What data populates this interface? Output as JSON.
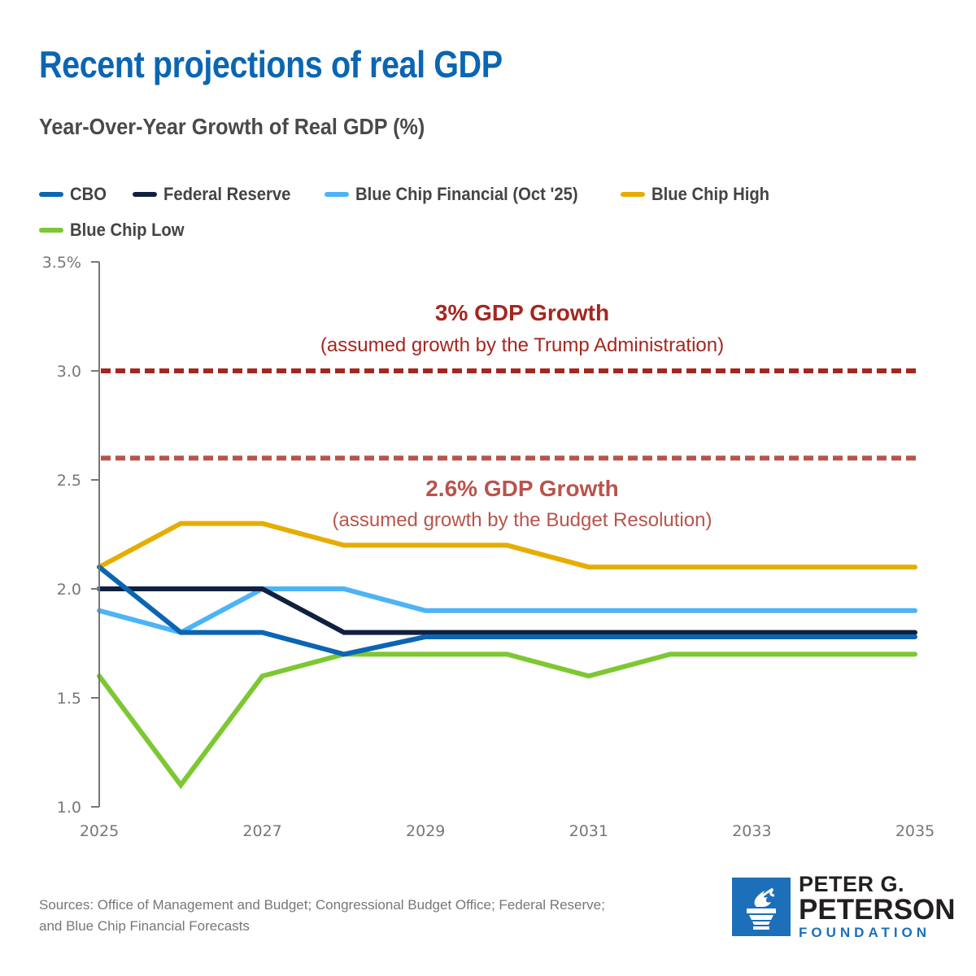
{
  "header": {
    "title": "Recent projections of real GDP",
    "subtitle": "Year-Over-Year Growth of Real GDP (%)"
  },
  "chart_data": {
    "type": "line",
    "title": "Recent projections of real GDP",
    "subtitle": "Year-Over-Year Growth of Real GDP (%)",
    "xlabel": "",
    "ylabel": "",
    "x": [
      2025,
      2026,
      2027,
      2028,
      2029,
      2030,
      2031,
      2032,
      2033,
      2034,
      2035
    ],
    "x_tick_labels": [
      "2025",
      "2027",
      "2029",
      "2031",
      "2033",
      "2035"
    ],
    "x_ticks": [
      2025,
      2027,
      2029,
      2031,
      2033,
      2035
    ],
    "y_tick_labels": [
      "3.5%",
      "3.0",
      "2.5",
      "2.0",
      "1.5",
      "1.0"
    ],
    "y_ticks": [
      3.5,
      3.0,
      2.5,
      2.0,
      1.5,
      1.0
    ],
    "ylim": [
      1.0,
      3.5
    ],
    "xlim": [
      2025,
      2035
    ],
    "grid": false,
    "legend_position": "top",
    "series": [
      {
        "name": "CBO",
        "color": "#0a66b2",
        "values": [
          2.1,
          1.8,
          1.8,
          1.7,
          1.78,
          1.78,
          1.78,
          1.78,
          1.78,
          1.78,
          1.78
        ]
      },
      {
        "name": "Federal Reserve",
        "color": "#10213f",
        "values": [
          2.0,
          2.0,
          2.0,
          1.8,
          1.8,
          1.8,
          1.8,
          1.8,
          1.8,
          1.8,
          1.8
        ]
      },
      {
        "name": "Blue Chip Financial (Oct '25)",
        "color": "#4db3f7",
        "values": [
          1.9,
          1.8,
          2.0,
          2.0,
          1.9,
          1.9,
          1.9,
          1.9,
          1.9,
          1.9,
          1.9
        ]
      },
      {
        "name": "Blue Chip High",
        "color": "#e6ad00",
        "values": [
          2.1,
          2.3,
          2.3,
          2.2,
          2.2,
          2.2,
          2.1,
          2.1,
          2.1,
          2.1,
          2.1
        ]
      },
      {
        "name": "Blue Chip Low",
        "color": "#7dc832",
        "values": [
          1.6,
          1.1,
          1.6,
          1.7,
          1.7,
          1.7,
          1.6,
          1.7,
          1.7,
          1.7,
          1.7
        ]
      }
    ],
    "reference_lines": [
      {
        "value": 3.0,
        "color": "#a4271f",
        "style": "dashed",
        "label": "3% GDP Growth",
        "sublabel": "(assumed growth by the Trump Administration)",
        "label_position": "above"
      },
      {
        "value": 2.6,
        "color": "#b8544c",
        "style": "dashed",
        "label": "2.6% GDP Growth",
        "sublabel": "(assumed growth by the Budget Resolution)",
        "label_position": "below"
      }
    ]
  },
  "legend": [
    {
      "label": "CBO",
      "color": "#0a66b2"
    },
    {
      "label": "Federal Reserve",
      "color": "#10213f"
    },
    {
      "label": "Blue Chip Financial (Oct '25)",
      "color": "#4db3f7"
    },
    {
      "label": "Blue Chip High",
      "color": "#e6ad00"
    },
    {
      "label": "Blue Chip Low",
      "color": "#7dc832"
    }
  ],
  "footer": {
    "sources_line1": "Sources: Office of Management and Budget; Congressional Budget Office; Federal Reserve;",
    "sources_line2": "and Blue Chip Financial Forecasts"
  },
  "logo": {
    "icon": "torch-icon",
    "line1": "PETER G.",
    "line2": "PETERSON",
    "line3": "FOUNDATION",
    "brand_color": "#1c6fb8"
  }
}
